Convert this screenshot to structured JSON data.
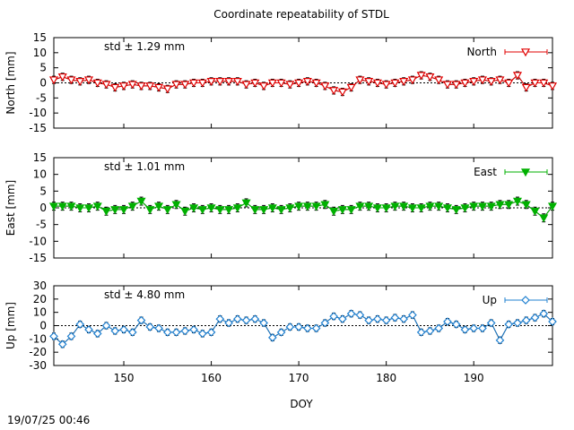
{
  "title": "Coordinate repeatability of STDL",
  "timestamp": "19/07/25 00:46",
  "chart_data": [
    {
      "type": "line",
      "name": "North",
      "ylabel": "North [mm]",
      "ylim": [
        -15,
        15
      ],
      "yticks": [
        -15,
        -10,
        -5,
        0,
        5,
        10,
        15
      ],
      "std_text": "std ± 1.29 mm",
      "legend": "North",
      "color": "#e00000",
      "marker": "triangle-down-open",
      "grid": false,
      "zero_line": true,
      "x": [
        142,
        143,
        144,
        145,
        146,
        147,
        148,
        149,
        150,
        151,
        152,
        153,
        154,
        155,
        156,
        157,
        158,
        159,
        160,
        161,
        162,
        163,
        164,
        165,
        166,
        167,
        168,
        169,
        170,
        171,
        172,
        173,
        174,
        175,
        176,
        177,
        178,
        179,
        180,
        181,
        182,
        183,
        184,
        185,
        186,
        187,
        188,
        189,
        190,
        191,
        192,
        193,
        194,
        195,
        196,
        197,
        198,
        199
      ],
      "values": [
        1,
        2,
        1,
        0.5,
        1,
        0,
        -0.5,
        -1.5,
        -1,
        -0.5,
        -1,
        -1,
        -1.5,
        -2,
        -0.5,
        -0.5,
        0,
        0,
        0.5,
        0.5,
        0.5,
        0.5,
        -0.5,
        0,
        -1,
        0,
        0,
        -0.5,
        0,
        0.5,
        0,
        -1,
        -2.5,
        -3,
        -1.5,
        1,
        0.5,
        0,
        -0.5,
        0,
        0.5,
        1,
        2.5,
        2,
        1,
        -0.5,
        -0.5,
        0,
        0.5,
        1,
        0.5,
        1,
        0,
        2.5,
        -1.5,
        0,
        0,
        -1
      ]
    },
    {
      "type": "line",
      "name": "East",
      "ylabel": "East [mm]",
      "ylim": [
        -15,
        15
      ],
      "yticks": [
        -15,
        -10,
        -5,
        0,
        5,
        10,
        15
      ],
      "std_text": "std ± 1.01 mm",
      "legend": "East",
      "color": "#00b000",
      "marker": "triangle-down-filled",
      "grid": false,
      "zero_line": true,
      "x": [
        142,
        143,
        144,
        145,
        146,
        147,
        148,
        149,
        150,
        151,
        152,
        153,
        154,
        155,
        156,
        157,
        158,
        159,
        160,
        161,
        162,
        163,
        164,
        165,
        166,
        167,
        168,
        169,
        170,
        171,
        172,
        173,
        174,
        175,
        176,
        177,
        178,
        179,
        180,
        181,
        182,
        183,
        184,
        185,
        186,
        187,
        188,
        189,
        190,
        191,
        192,
        193,
        194,
        195,
        196,
        197,
        198,
        199
      ],
      "values": [
        0.5,
        0.5,
        0.5,
        0,
        0,
        0.5,
        -1,
        -0.5,
        -0.5,
        0.5,
        2,
        -0.5,
        0.5,
        -0.5,
        1,
        -1,
        0,
        -0.5,
        0,
        -0.5,
        -0.5,
        0,
        1.5,
        -0.5,
        -0.5,
        0,
        -0.5,
        0,
        0.5,
        0.5,
        0.5,
        1,
        -1,
        -0.5,
        -0.5,
        0.5,
        0.5,
        0,
        0,
        0.5,
        0.5,
        0,
        0,
        0.5,
        0.5,
        0,
        -0.5,
        0,
        0.5,
        0.5,
        0.5,
        1,
        1,
        2,
        1,
        -1,
        -3,
        0.5
      ]
    },
    {
      "type": "line",
      "name": "Up",
      "ylabel": "Up [mm]",
      "ylim": [
        -30,
        30
      ],
      "yticks": [
        -30,
        -20,
        -10,
        0,
        10,
        20,
        30
      ],
      "std_text": "std ± 4.80 mm",
      "legend": "Up",
      "color": "#2080d0",
      "marker": "diamond-open",
      "grid": false,
      "zero_line": true,
      "x": [
        142,
        143,
        144,
        145,
        146,
        147,
        148,
        149,
        150,
        151,
        152,
        153,
        154,
        155,
        156,
        157,
        158,
        159,
        160,
        161,
        162,
        163,
        164,
        165,
        166,
        167,
        168,
        169,
        170,
        171,
        172,
        173,
        174,
        175,
        176,
        177,
        178,
        179,
        180,
        181,
        182,
        183,
        184,
        185,
        186,
        187,
        188,
        189,
        190,
        191,
        192,
        193,
        194,
        195,
        196,
        197,
        198,
        199
      ],
      "values": [
        -8,
        -14,
        -8,
        1,
        -3,
        -6,
        0,
        -4,
        -3,
        -5,
        4,
        -1,
        -2,
        -5,
        -5,
        -4,
        -3,
        -6,
        -5,
        5,
        2,
        5,
        4,
        5,
        2,
        -9,
        -5,
        -1,
        -1,
        -2,
        -2,
        2,
        7,
        5,
        9,
        8,
        4,
        5,
        4,
        6,
        5,
        8,
        -5,
        -4,
        -2,
        3,
        1,
        -3,
        -2,
        -2,
        2,
        -11,
        1,
        2,
        4,
        6,
        9,
        3
      ]
    }
  ],
  "x_axis": {
    "label": "DOY",
    "range": [
      142,
      199
    ],
    "ticks": [
      150,
      160,
      170,
      180,
      190
    ]
  }
}
